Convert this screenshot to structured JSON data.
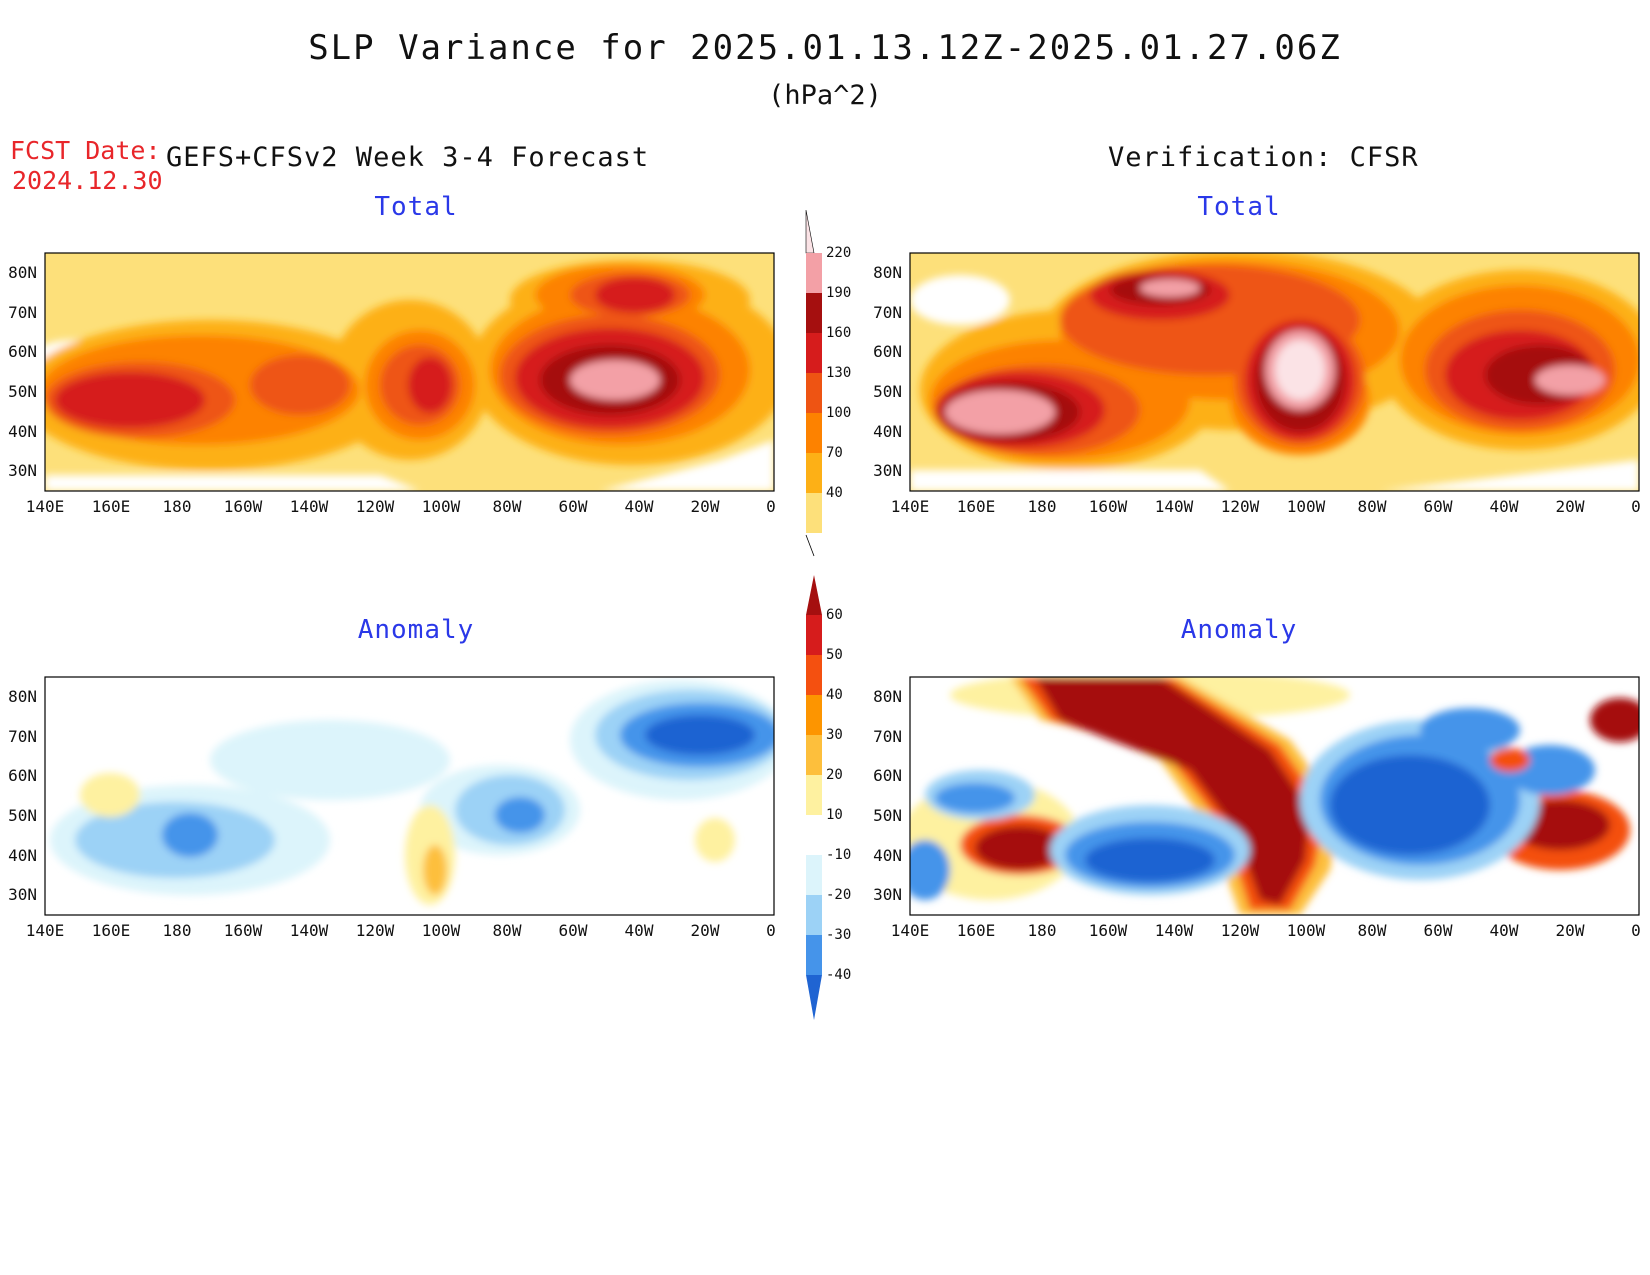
{
  "title": "SLP Variance for 2025.01.13.12Z-2025.01.27.06Z",
  "units": "(hPa^2)",
  "forecast": {
    "label": "FCST Date:",
    "date": "2024.12.30"
  },
  "left_header": "GEFS+CFSv2 Week 3-4 Forecast",
  "right_header": "Verification: CFSR",
  "panels": [
    {
      "id": "forecast-total",
      "title": "Total"
    },
    {
      "id": "verification-total",
      "title": "Total"
    },
    {
      "id": "forecast-anomaly",
      "title": "Anomaly"
    },
    {
      "id": "verification-anomaly",
      "title": "Anomaly"
    }
  ],
  "axes": {
    "lon_labels": [
      "140E",
      "160E",
      "180",
      "160W",
      "140W",
      "120W",
      "100W",
      "80W",
      "60W",
      "40W",
      "20W",
      "0"
    ],
    "lat_labels": [
      "80N",
      "70N",
      "60N",
      "50N",
      "40N",
      "30N"
    ],
    "lon_range": "140E to 0",
    "lat_range": "25N to 85N"
  },
  "total_colorbar": {
    "levels": [
      "40",
      "70",
      "100",
      "130",
      "160",
      "190",
      "220"
    ],
    "colors": [
      "#fde07a",
      "#fdb016",
      "#fd8200",
      "#ee5413",
      "#d61c1c",
      "#a50f0f",
      "#f3a0a6",
      "#fbe3e6"
    ]
  },
  "anomaly_colorbar": {
    "levels": [
      "60",
      "50",
      "40",
      "30",
      "20",
      "10",
      "-10",
      "-20",
      "-30",
      "-40"
    ],
    "colors": [
      "#a50f0f",
      "#d61c1c",
      "#f45010",
      "#fd9500",
      "#fdbf3c",
      "#fef1a0",
      "#ffffff",
      "#dcf4fb",
      "#9cd2f6",
      "#4594ea",
      "#1f64d2"
    ]
  }
}
